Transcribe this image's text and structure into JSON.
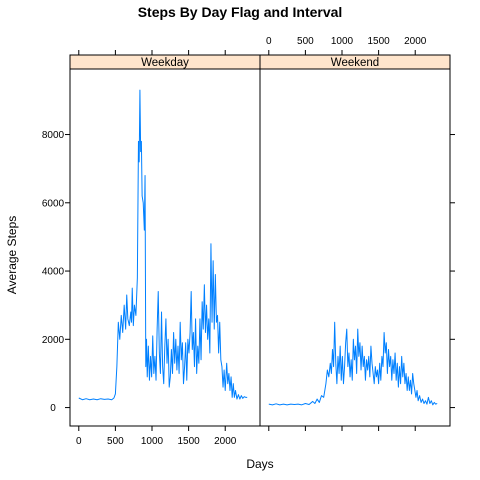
{
  "chart_data": {
    "type": "line",
    "title": "Steps By Day Flag and Interval",
    "xlabel": "Days",
    "ylabel": "Average Steps",
    "x_ticks": [
      0,
      500,
      1000,
      1500,
      2000
    ],
    "y_ticks": [
      0,
      2000,
      4000,
      6000,
      8000
    ],
    "xlim": [
      -120,
      2475
    ],
    "ylim": [
      -540,
      9920
    ],
    "grid": false,
    "legend": "none",
    "line_color": "#0080ff",
    "strip_color": "#ffe5cc",
    "panels": [
      {
        "name": "Weekday",
        "points": [
          [
            0,
            280
          ],
          [
            50,
            230
          ],
          [
            100,
            260
          ],
          [
            150,
            230
          ],
          [
            200,
            250
          ],
          [
            250,
            230
          ],
          [
            300,
            260
          ],
          [
            350,
            240
          ],
          [
            400,
            250
          ],
          [
            450,
            230
          ],
          [
            480,
            280
          ],
          [
            500,
            400
          ],
          [
            520,
            1200
          ],
          [
            540,
            2500
          ],
          [
            560,
            2000
          ],
          [
            580,
            2700
          ],
          [
            600,
            2200
          ],
          [
            620,
            3000
          ],
          [
            640,
            2300
          ],
          [
            655,
            3300
          ],
          [
            670,
            2600
          ],
          [
            690,
            2400
          ],
          [
            710,
            2800
          ],
          [
            720,
            2500
          ],
          [
            730,
            3500
          ],
          [
            745,
            2400
          ],
          [
            760,
            3000
          ],
          [
            780,
            2700
          ],
          [
            800,
            3800
          ],
          [
            815,
            7800
          ],
          [
            825,
            7200
          ],
          [
            835,
            9300
          ],
          [
            845,
            7500
          ],
          [
            855,
            7800
          ],
          [
            865,
            6200
          ],
          [
            880,
            6000
          ],
          [
            895,
            5200
          ],
          [
            905,
            6800
          ],
          [
            915,
            1200
          ],
          [
            925,
            2000
          ],
          [
            935,
            900
          ],
          [
            950,
            1800
          ],
          [
            965,
            800
          ],
          [
            980,
            1500
          ],
          [
            995,
            900
          ],
          [
            1010,
            2100
          ],
          [
            1025,
            1000
          ],
          [
            1040,
            1500
          ],
          [
            1055,
            800
          ],
          [
            1070,
            2300
          ],
          [
            1085,
            3400
          ],
          [
            1100,
            1600
          ],
          [
            1115,
            1000
          ],
          [
            1130,
            2800
          ],
          [
            1145,
            1200
          ],
          [
            1160,
            700
          ],
          [
            1175,
            1800
          ],
          [
            1190,
            2600
          ],
          [
            1205,
            1300
          ],
          [
            1220,
            2000
          ],
          [
            1235,
            600
          ],
          [
            1250,
            900
          ],
          [
            1265,
            1700
          ],
          [
            1280,
            1000
          ],
          [
            1295,
            2200
          ],
          [
            1310,
            1300
          ],
          [
            1325,
            2000
          ],
          [
            1340,
            1100
          ],
          [
            1355,
            1800
          ],
          [
            1370,
            1000
          ],
          [
            1385,
            2500
          ],
          [
            1400,
            1400
          ],
          [
            1415,
            1900
          ],
          [
            1430,
            700
          ],
          [
            1445,
            1200
          ],
          [
            1460,
            1900
          ],
          [
            1475,
            800
          ],
          [
            1490,
            2000
          ],
          [
            1505,
            1600
          ],
          [
            1520,
            2200
          ],
          [
            1535,
            3400
          ],
          [
            1550,
            1700
          ],
          [
            1565,
            2200
          ],
          [
            1580,
            1200
          ],
          [
            1595,
            2600
          ],
          [
            1610,
            1000
          ],
          [
            1625,
            1800
          ],
          [
            1640,
            1300
          ],
          [
            1655,
            2600
          ],
          [
            1670,
            1400
          ],
          [
            1685,
            3100
          ],
          [
            1700,
            2300
          ],
          [
            1715,
            3600
          ],
          [
            1730,
            2200
          ],
          [
            1745,
            3000
          ],
          [
            1760,
            2000
          ],
          [
            1775,
            2600
          ],
          [
            1790,
            1600
          ],
          [
            1805,
            4800
          ],
          [
            1820,
            2500
          ],
          [
            1835,
            4300
          ],
          [
            1850,
            2300
          ],
          [
            1865,
            3900
          ],
          [
            1880,
            2500
          ],
          [
            1895,
            2700
          ],
          [
            1910,
            1600
          ],
          [
            1925,
            2500
          ],
          [
            1940,
            1400
          ],
          [
            1955,
            1200
          ],
          [
            1970,
            600
          ],
          [
            1985,
            1100
          ],
          [
            2000,
            500
          ],
          [
            2020,
            1300
          ],
          [
            2035,
            700
          ],
          [
            2050,
            1000
          ],
          [
            2065,
            500
          ],
          [
            2080,
            900
          ],
          [
            2095,
            300
          ],
          [
            2110,
            700
          ],
          [
            2125,
            300
          ],
          [
            2140,
            500
          ],
          [
            2160,
            250
          ],
          [
            2180,
            380
          ],
          [
            2200,
            250
          ],
          [
            2220,
            350
          ],
          [
            2240,
            270
          ],
          [
            2260,
            320
          ],
          [
            2280,
            300
          ],
          [
            2300,
            300
          ]
        ]
      },
      {
        "name": "Weekend",
        "points": [
          [
            0,
            100
          ],
          [
            50,
            80
          ],
          [
            100,
            110
          ],
          [
            150,
            80
          ],
          [
            200,
            100
          ],
          [
            250,
            80
          ],
          [
            300,
            100
          ],
          [
            350,
            90
          ],
          [
            400,
            100
          ],
          [
            450,
            80
          ],
          [
            500,
            120
          ],
          [
            550,
            90
          ],
          [
            600,
            180
          ],
          [
            630,
            120
          ],
          [
            660,
            250
          ],
          [
            690,
            150
          ],
          [
            720,
            350
          ],
          [
            750,
            300
          ],
          [
            780,
            700
          ],
          [
            800,
            1100
          ],
          [
            820,
            900
          ],
          [
            840,
            1300
          ],
          [
            855,
            1000
          ],
          [
            870,
            1700
          ],
          [
            885,
            1200
          ],
          [
            900,
            2500
          ],
          [
            915,
            1300
          ],
          [
            930,
            700
          ],
          [
            945,
            1500
          ],
          [
            960,
            1000
          ],
          [
            975,
            1800
          ],
          [
            990,
            800
          ],
          [
            1005,
            1500
          ],
          [
            1020,
            700
          ],
          [
            1035,
            1200
          ],
          [
            1050,
            1900
          ],
          [
            1065,
            2300
          ],
          [
            1080,
            1200
          ],
          [
            1095,
            1600
          ],
          [
            1110,
            900
          ],
          [
            1125,
            1400
          ],
          [
            1140,
            800
          ],
          [
            1155,
            2000
          ],
          [
            1170,
            1400
          ],
          [
            1185,
            1800
          ],
          [
            1200,
            1000
          ],
          [
            1215,
            2300
          ],
          [
            1230,
            1500
          ],
          [
            1245,
            1900
          ],
          [
            1260,
            1100
          ],
          [
            1275,
            1800
          ],
          [
            1290,
            1200
          ],
          [
            1305,
            1500
          ],
          [
            1320,
            800
          ],
          [
            1335,
            1400
          ],
          [
            1350,
            1100
          ],
          [
            1365,
            1500
          ],
          [
            1380,
            900
          ],
          [
            1395,
            1800
          ],
          [
            1410,
            1300
          ],
          [
            1425,
            1000
          ],
          [
            1440,
            700
          ],
          [
            1455,
            1200
          ],
          [
            1470,
            900
          ],
          [
            1485,
            1100
          ],
          [
            1500,
            700
          ],
          [
            1515,
            1300
          ],
          [
            1530,
            800
          ],
          [
            1545,
            1500
          ],
          [
            1560,
            1200
          ],
          [
            1575,
            2200
          ],
          [
            1590,
            1600
          ],
          [
            1605,
            1900
          ],
          [
            1620,
            1000
          ],
          [
            1635,
            1700
          ],
          [
            1650,
            1200
          ],
          [
            1665,
            1500
          ],
          [
            1680,
            800
          ],
          [
            1695,
            1400
          ],
          [
            1710,
            1000
          ],
          [
            1725,
            1600
          ],
          [
            1740,
            800
          ],
          [
            1755,
            1300
          ],
          [
            1770,
            600
          ],
          [
            1785,
            1200
          ],
          [
            1800,
            700
          ],
          [
            1815,
            1500
          ],
          [
            1830,
            900
          ],
          [
            1845,
            1300
          ],
          [
            1860,
            700
          ],
          [
            1875,
            1000
          ],
          [
            1890,
            500
          ],
          [
            1905,
            900
          ],
          [
            1920,
            500
          ],
          [
            1935,
            800
          ],
          [
            1950,
            400
          ],
          [
            1965,
            1000
          ],
          [
            1980,
            700
          ],
          [
            1995,
            500
          ],
          [
            2010,
            300
          ],
          [
            2025,
            500
          ],
          [
            2040,
            200
          ],
          [
            2060,
            350
          ],
          [
            2080,
            150
          ],
          [
            2100,
            250
          ],
          [
            2120,
            120
          ],
          [
            2140,
            200
          ],
          [
            2160,
            100
          ],
          [
            2180,
            300
          ],
          [
            2200,
            120
          ],
          [
            2220,
            200
          ],
          [
            2240,
            80
          ],
          [
            2260,
            150
          ],
          [
            2280,
            100
          ],
          [
            2300,
            120
          ]
        ]
      }
    ]
  }
}
